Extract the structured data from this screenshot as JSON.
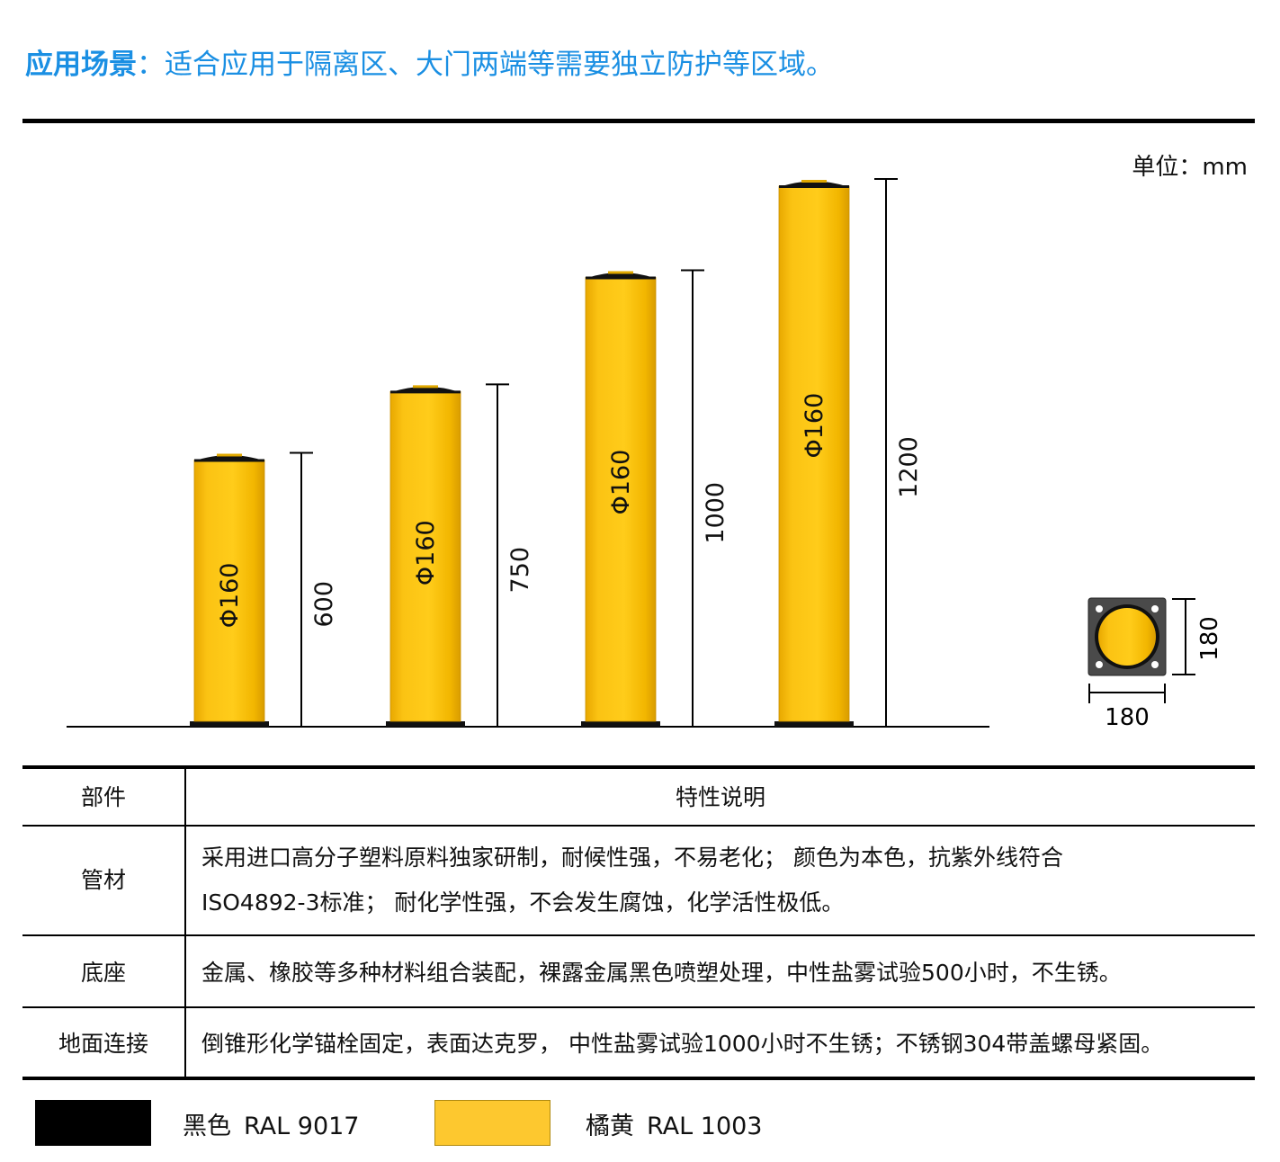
{
  "header": {
    "label": "应用场景",
    "separator": "：",
    "text": "适合应用于隔离区、大门两端等需要独立防护等区域。"
  },
  "unit_note": "单位：mm",
  "colors": {
    "accent": "#1a8fe3",
    "post_yellow": "#f5b800",
    "base_black": "#000000"
  },
  "posts": [
    {
      "diameter_label": "Φ160",
      "height_label": "600",
      "height_mm": 600
    },
    {
      "diameter_label": "Φ160",
      "height_label": "750",
      "height_mm": 750
    },
    {
      "diameter_label": "Φ160",
      "height_label": "1000",
      "height_mm": 1000
    },
    {
      "diameter_label": "Φ160",
      "height_label": "1200",
      "height_mm": 1200
    }
  ],
  "base_plate": {
    "width_label": "180",
    "height_label": "180"
  },
  "table": {
    "headers": [
      "部件",
      "特性说明"
    ],
    "rows": [
      {
        "part": "管材",
        "desc_lines": [
          "采用进口高分子塑料原料独家研制，耐候性强，不易老化； 颜色为本色，抗紫外线符合",
          "ISO4892-3标准； 耐化学性强，不会发生腐蚀，化学活性极低。"
        ]
      },
      {
        "part": "底座",
        "desc_lines": [
          "金属、橡胶等多种材料组合装配，裸露金属黑色喷塑处理，中性盐雾试验500小时，不生锈。"
        ]
      },
      {
        "part": "地面连接",
        "desc_lines": [
          "倒锥形化学锚栓固定，表面达克罗， 中性盐雾试验1000小时不生锈；不锈钢304带盖螺母紧固。"
        ]
      }
    ]
  },
  "swatches": [
    {
      "name": "黑色",
      "code": "RAL 9017",
      "color": "#000000"
    },
    {
      "name": "橘黄",
      "code": "RAL 1003",
      "color": "#fdc82f"
    }
  ]
}
